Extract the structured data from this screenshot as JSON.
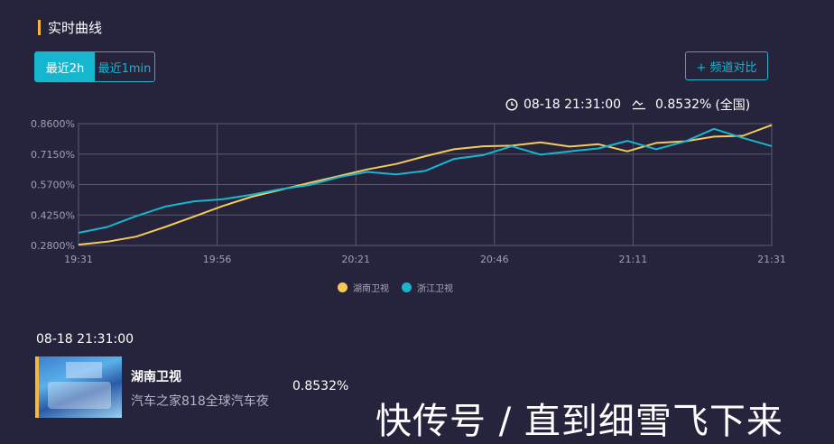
{
  "header": {
    "title": "实时曲线"
  },
  "range_tabs": [
    {
      "label": "最近2h",
      "active": true
    },
    {
      "label": "最近1min",
      "active": false
    }
  ],
  "compare_button": {
    "label": "+ 频道对比"
  },
  "status": {
    "time": "08-18 21:31:00",
    "value": "0.8532%",
    "scope": "(全国)"
  },
  "colors": {
    "hunan": "#f5c95a",
    "zhejiang": "#17b6cf",
    "accent": "#17b6cf",
    "background": "#26243c"
  },
  "chart_data": {
    "type": "line",
    "x_ticks": [
      "19:31",
      "19:56",
      "20:21",
      "20:46",
      "21:11",
      "21:31"
    ],
    "x_range": [
      "19:31",
      "21:31"
    ],
    "y_ticks": [
      "0.2800%",
      "0.4250%",
      "0.5700%",
      "0.7150%",
      "0.8600%"
    ],
    "ylim": [
      0.28,
      0.86
    ],
    "grid": true,
    "legend_position": "bottom-center",
    "x_minutes": [
      0,
      5,
      10,
      15,
      20,
      25,
      30,
      35,
      40,
      45,
      50,
      55,
      60,
      65,
      70,
      75,
      80,
      85,
      90,
      95,
      100,
      105,
      110,
      115,
      120
    ],
    "series": [
      {
        "name": "湖南卫视",
        "color": "#f5c95a",
        "values": [
          0.284,
          0.298,
          0.322,
          0.368,
          0.418,
          0.468,
          0.512,
          0.545,
          0.578,
          0.61,
          0.642,
          0.668,
          0.705,
          0.738,
          0.752,
          0.755,
          0.771,
          0.751,
          0.762,
          0.728,
          0.768,
          0.776,
          0.798,
          0.802,
          0.853
        ]
      },
      {
        "name": "浙江卫视",
        "color": "#17b6cf",
        "values": [
          0.34,
          0.368,
          0.42,
          0.465,
          0.49,
          0.5,
          0.522,
          0.548,
          0.568,
          0.605,
          0.63,
          0.618,
          0.635,
          0.692,
          0.71,
          0.752,
          0.712,
          0.728,
          0.742,
          0.778,
          0.738,
          0.775,
          0.835,
          0.792,
          0.753
        ]
      }
    ]
  },
  "bottom": {
    "time": "08-18 21:31:00",
    "channel": "湖南卫视",
    "program": "汽车之家818全球汽车夜",
    "value": "0.8532%"
  },
  "watermark": "快传号 / 直到细雪飞下来"
}
